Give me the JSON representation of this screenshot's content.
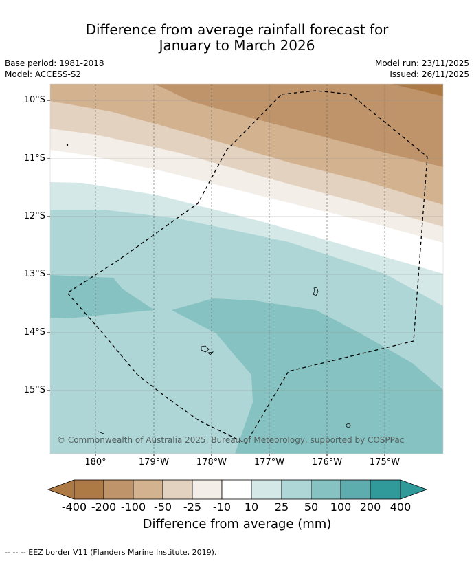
{
  "title_line1": "Difference from average rainfall forecast for",
  "title_line2": "January to March 2026",
  "base_period": "Base period: 1981-2018",
  "model": "Model: ACCESS-S2",
  "model_run": "Model run: 23/11/2025",
  "issued": "Issued: 26/11/2025",
  "lat_labels": [
    "10°S",
    "11°S",
    "12°S",
    "13°S",
    "14°S",
    "15°S"
  ],
  "lon_labels": [
    "180°",
    "179°W",
    "178°W",
    "177°W",
    "176°W",
    "175°W"
  ],
  "colorbar": {
    "labels": [
      "-400",
      "-200",
      "-100",
      "-50",
      "-25",
      "-10",
      "10",
      "25",
      "50",
      "100",
      "200",
      "400"
    ],
    "colors": [
      "#ad7a45",
      "#bf946b",
      "#d2b28f",
      "#e4d2c0",
      "#f3eee7",
      "#ffffff",
      "#d4e8e8",
      "#aed6d6",
      "#86c2c1",
      "#5eadae",
      "#30999a"
    ],
    "title": "Difference from average (mm)"
  },
  "copyright": "© Commonwealth of Australia 2025, Bureau of Meteorology, supported by COSPPac",
  "footnote": "--  --  -- EEZ border V11 (Flanders Marine Institute, 2019)."
}
